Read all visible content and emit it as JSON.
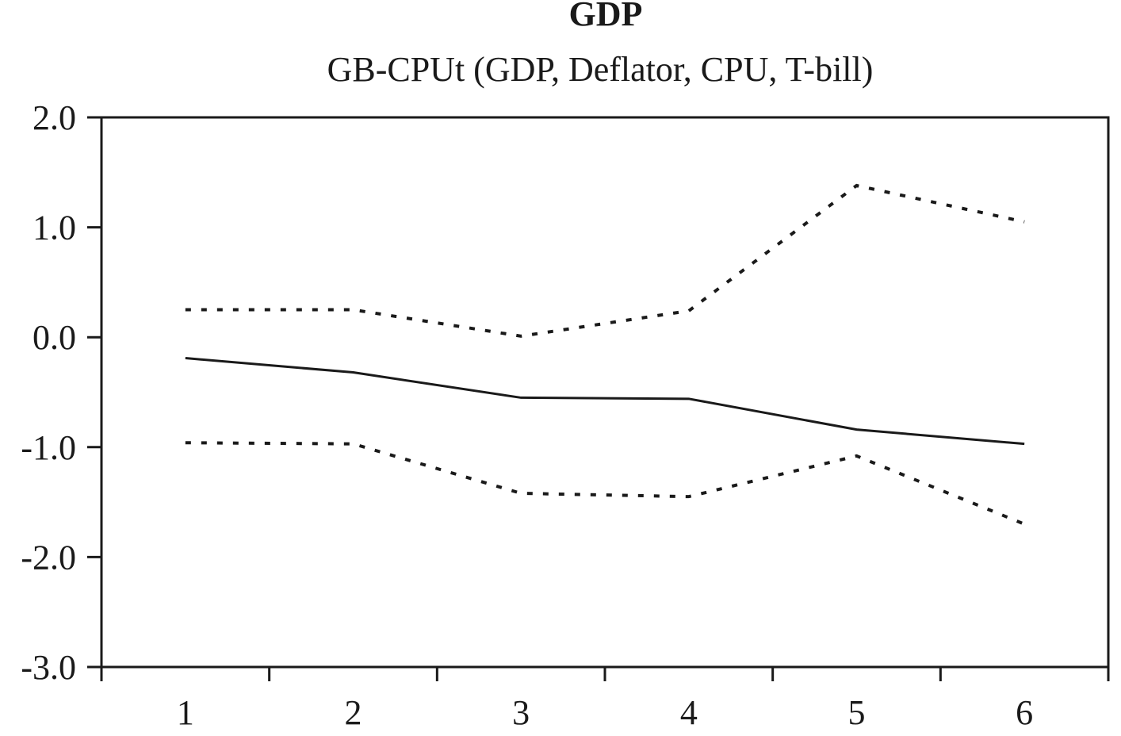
{
  "chart_data": {
    "type": "line",
    "title": "GDP",
    "subtitle": "GB-CPUt (GDP, Deflator, CPU, T-bill)",
    "xlabel": "",
    "ylabel": "",
    "x": [
      1,
      2,
      3,
      4,
      5,
      6
    ],
    "x_tick_labels": [
      "1",
      "2",
      "3",
      "4",
      "5",
      "6"
    ],
    "ylim": [
      -3.0,
      2.0
    ],
    "y_tick_labels": [
      "2.0",
      "1.0",
      "0.0",
      "-1.0",
      "-2.0",
      "-3.0"
    ],
    "y_ticks": [
      2.0,
      1.0,
      0.0,
      -1.0,
      -2.0,
      -3.0
    ],
    "grid": false,
    "legend": "none",
    "series": [
      {
        "style": "solid",
        "values": [
          -0.19,
          -0.32,
          -0.55,
          -0.56,
          -0.84,
          -0.97
        ]
      },
      {
        "style": "dotted",
        "values": [
          0.25,
          0.25,
          0.01,
          0.24,
          1.38,
          1.05
        ]
      },
      {
        "style": "dotted",
        "values": [
          -0.96,
          -0.97,
          -1.42,
          -1.45,
          -1.08,
          -1.7
        ]
      }
    ],
    "colors": {
      "line": "#1a1a1a",
      "axis": "#1a1a1a"
    }
  }
}
